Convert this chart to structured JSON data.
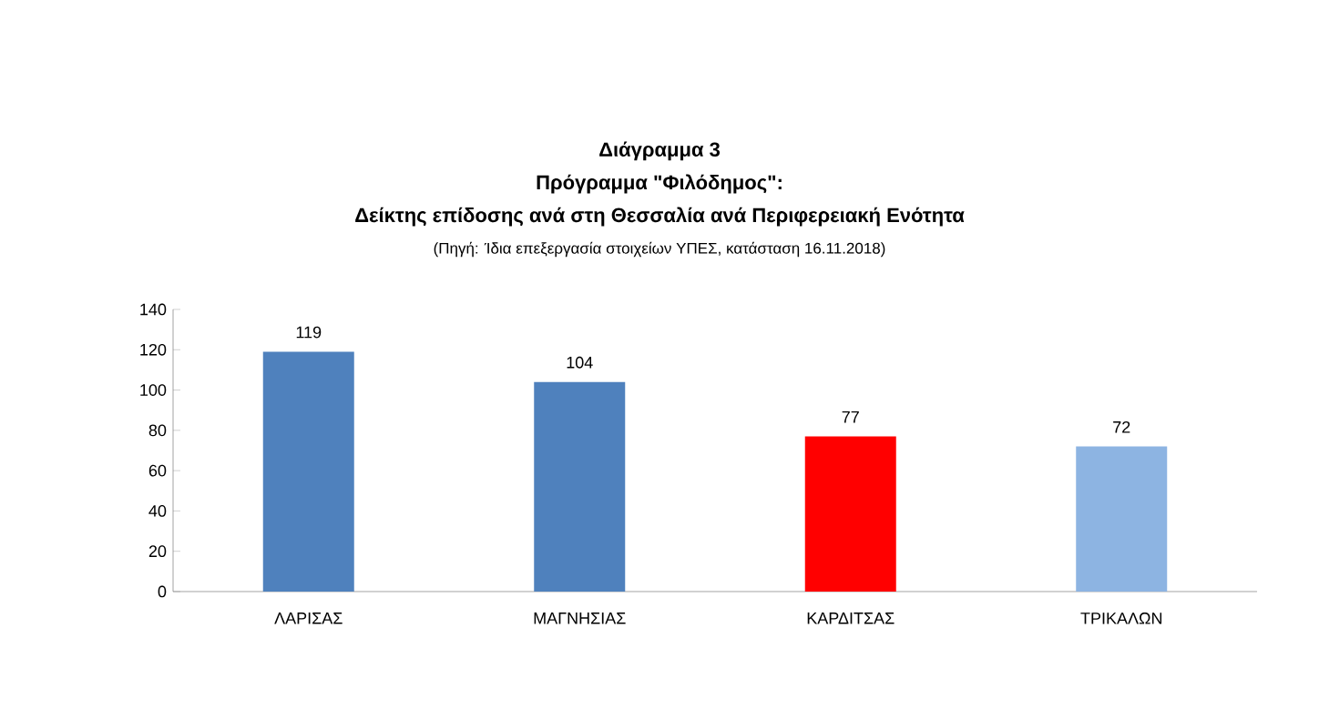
{
  "chart_data": {
    "type": "bar",
    "title": "Διάγραμμα 3",
    "subtitle": "Πρόγραμμα \"Φιλόδημος\":",
    "annotations": [
      "Δείκτης επίδοσης ανά στη Θεσσαλία ανά Περιφερειακή Ενότητα",
      "(Πηγή: Ίδια επεξεργασία στοιχείων ΥΠΕΣ, κατάσταση  16.11.2018)"
    ],
    "categories": [
      "ΛΑΡΙΣΑΣ",
      "ΜΑΓΝΗΣΙΑΣ",
      "ΚΑΡΔΙΤΣΑΣ",
      "ΤΡΙΚΑΛΩΝ"
    ],
    "values": [
      119,
      104,
      77,
      72
    ],
    "colors": [
      "#4f81bd",
      "#4f81bd",
      "#ff0000",
      "#8db4e2"
    ],
    "ylim": [
      0,
      140
    ],
    "yticks": [
      0,
      20,
      40,
      60,
      80,
      100,
      120,
      140
    ],
    "data_labels": true
  }
}
